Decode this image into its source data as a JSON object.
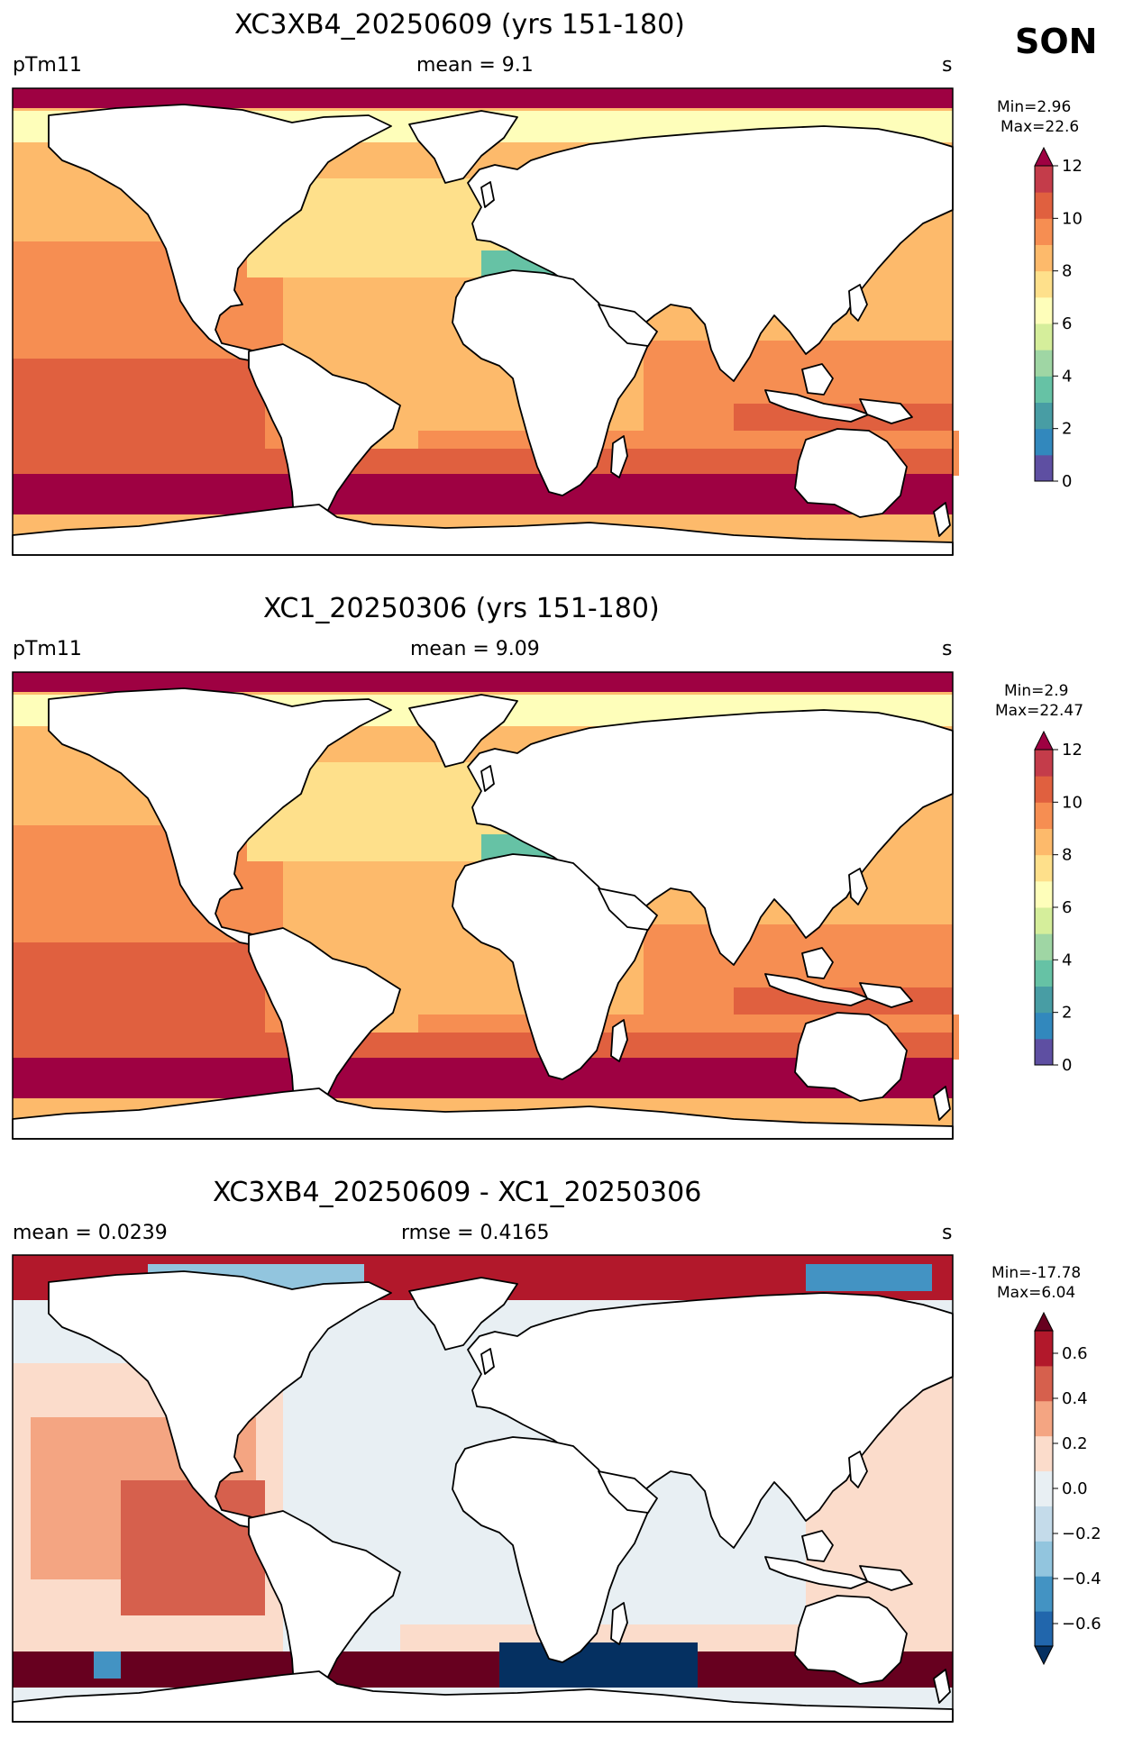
{
  "season": "SON",
  "colors": {
    "seq": [
      "#5e4fa2",
      "#3288bd",
      "#489da4",
      "#66c2a5",
      "#9fd6a4",
      "#d5ee9b",
      "#fefeba",
      "#fee08b",
      "#fdba6b",
      "#f68e52",
      "#e0603f",
      "#c43c4a",
      "#9e0142"
    ],
    "div": [
      "#053061",
      "#2166ac",
      "#4393c3",
      "#92c5de",
      "#c4dbea",
      "#e8eff3",
      "#fbdccb",
      "#f4a582",
      "#d6604d",
      "#b2182b",
      "#67001f"
    ],
    "land": "#ffffff",
    "coast": "#000000"
  },
  "panels": [
    {
      "title": "XC3XB4_20250609 (yrs 151-180)",
      "left": "pTm11",
      "center": "mean = 9.1",
      "right": "s",
      "minmax_min": "Min=2.96",
      "minmax_max": "Max=22.6",
      "ticks": [
        "0",
        "2",
        "4",
        "6",
        "8",
        "10",
        "12"
      ]
    },
    {
      "title": "XC1_20250306 (yrs 151-180)",
      "left": "pTm11",
      "center": "mean = 9.09",
      "right": "s",
      "minmax_min": "Min=2.9",
      "minmax_max": "Max=22.47",
      "ticks": [
        "0",
        "2",
        "4",
        "6",
        "8",
        "10",
        "12"
      ]
    },
    {
      "title": "XC3XB4_20250609 - XC1_20250306",
      "left": "mean = 0.0239",
      "center": "rmse = 0.4165",
      "right": "s",
      "minmax_min": "Min=-17.78",
      "minmax_max": "Max=6.04",
      "ticks": [
        "−0.6",
        "−0.4",
        "−0.2",
        "0.0",
        "0.2",
        "0.4",
        "0.6"
      ]
    }
  ]
}
